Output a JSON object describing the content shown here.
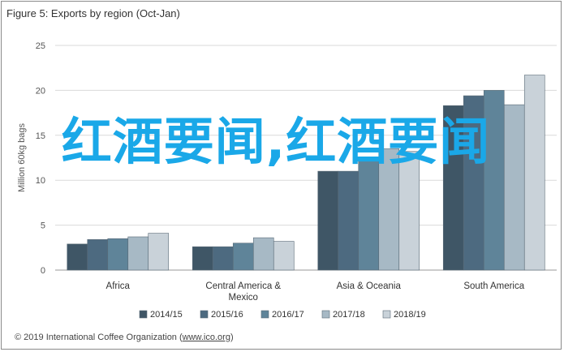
{
  "title": "Figure 5: Exports by region (Oct-Jan)",
  "credit_prefix": "© 2019 International Coffee Organization (",
  "credit_link": "www.ico.org",
  "credit_suffix": ")",
  "overlay_text": "红酒要闻,红酒要闻",
  "chart_data": {
    "type": "bar",
    "title": "Figure 5: Exports by region (Oct-Jan)",
    "ylabel": "Million 60kg bags",
    "xlabel": "",
    "ylim": [
      0,
      25
    ],
    "yticks": [
      0,
      5,
      10,
      15,
      20,
      25
    ],
    "grid": true,
    "legend_position": "bottom",
    "categories": [
      "Africa",
      "Central America & Mexico",
      "Asia & Oceania",
      "South America"
    ],
    "category_lines": [
      [
        "Africa"
      ],
      [
        "Central America &",
        "Mexico"
      ],
      [
        "Asia & Oceania"
      ],
      [
        "South America"
      ]
    ],
    "series": [
      {
        "name": "2014/15",
        "color": "#3f5666",
        "values": [
          2.9,
          2.6,
          11.0,
          18.3
        ]
      },
      {
        "name": "2015/16",
        "color": "#4d6a80",
        "values": [
          3.4,
          2.6,
          11.0,
          19.4
        ]
      },
      {
        "name": "2016/17",
        "color": "#5f8499",
        "values": [
          3.5,
          3.0,
          12.4,
          20.0
        ]
      },
      {
        "name": "2017/18",
        "color": "#a7b9c5",
        "values": [
          3.7,
          3.6,
          13.5,
          18.4
        ]
      },
      {
        "name": "2018/19",
        "color": "#c9d2d9",
        "values": [
          4.1,
          3.2,
          13.2,
          21.7
        ]
      }
    ]
  }
}
